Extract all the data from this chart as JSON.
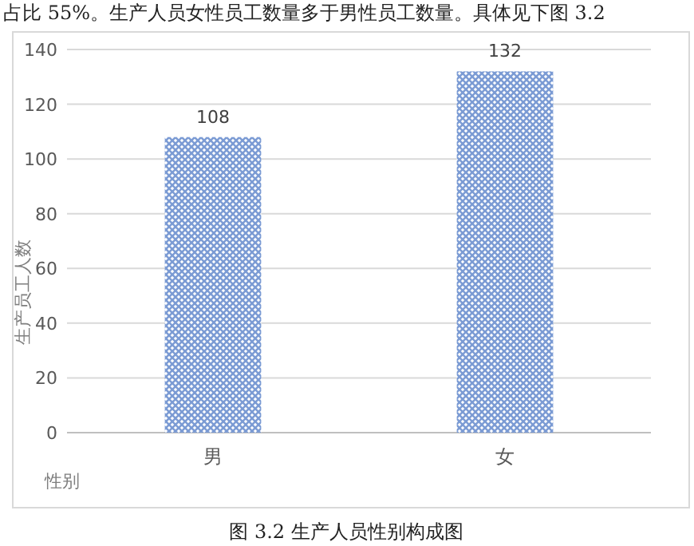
{
  "chart_data": {
    "type": "bar",
    "xlabel": "性别",
    "ylabel": "生产员工人数",
    "categories": [
      "男",
      "女"
    ],
    "values": [
      108,
      132
    ],
    "color": "#7b9bd4",
    "data_labels": true,
    "ylim": [
      0,
      140
    ],
    "yticks": [
      0,
      20,
      40,
      60,
      80,
      100,
      120,
      140
    ],
    "grid": "y",
    "annotations": [
      "占比 55%。生产人员女性员工数量多于男性员工数量。具体见下图 3.2",
      "图 3.2 生产人员性别构成图"
    ]
  }
}
